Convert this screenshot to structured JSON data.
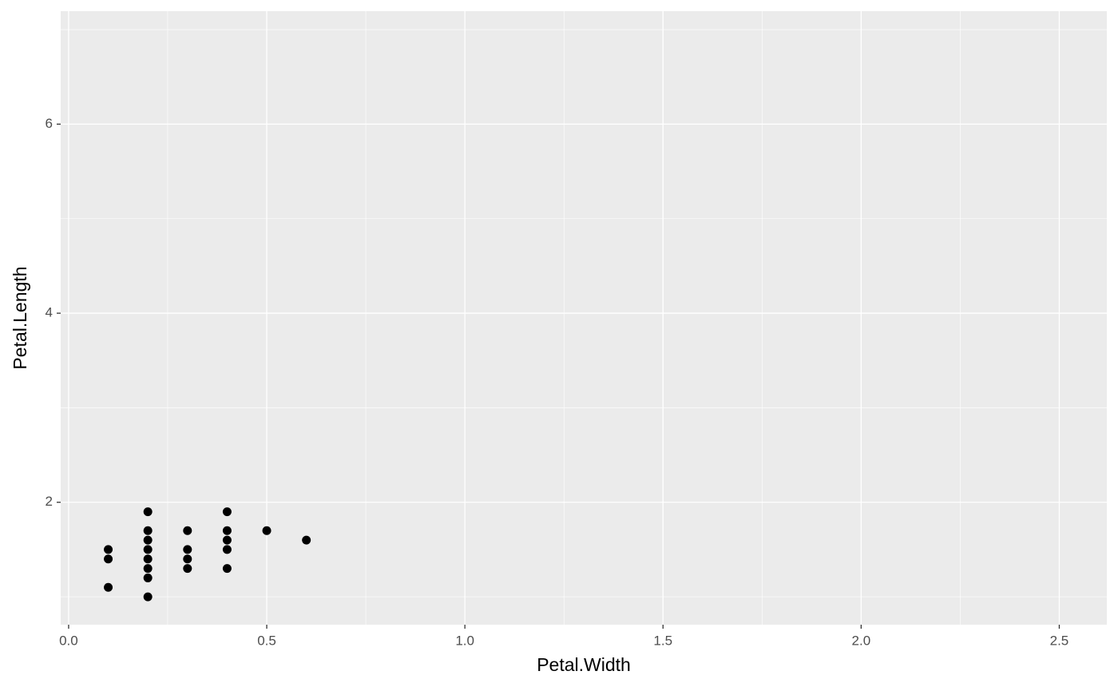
{
  "chart_data": {
    "type": "scatter",
    "x_label": "Petal.Width",
    "y_label": "Petal.Length",
    "series": [
      {
        "color": "#000000",
        "x": [
          0.1,
          0.1,
          0.1,
          0.2,
          0.2,
          0.2,
          0.2,
          0.2,
          0.2,
          0.2,
          0.2,
          0.3,
          0.3,
          0.3,
          0.3,
          0.4,
          0.4,
          0.4,
          0.4,
          0.4,
          0.5,
          0.6
        ],
        "values": [
          1.1,
          1.4,
          1.5,
          1.0,
          1.2,
          1.3,
          1.4,
          1.5,
          1.6,
          1.7,
          1.9,
          1.3,
          1.4,
          1.5,
          1.7,
          1.3,
          1.5,
          1.6,
          1.7,
          1.9,
          1.7,
          1.6
        ]
      }
    ],
    "xlim": [
      -0.02,
      2.62
    ],
    "ylim": [
      0.705,
      7.195
    ],
    "xticks": [
      {
        "value": 0,
        "label": "0.0"
      },
      0.5,
      {
        "value": 1,
        "label": "1.0"
      },
      1.5,
      {
        "value": 2,
        "label": "2.0"
      },
      2.5
    ],
    "yticks": [
      2,
      4,
      6
    ],
    "x_minor_grid": [
      0.25,
      0.75,
      1.25,
      1.75,
      2.25
    ],
    "y_minor_grid": [
      1,
      3,
      5,
      7
    ],
    "grid": true,
    "panel_color": "#ebebeb"
  }
}
